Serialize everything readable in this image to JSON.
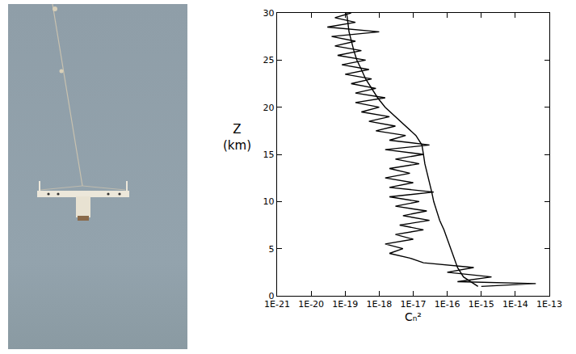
{
  "chart_data": {
    "type": "line",
    "xlabel": "Cₙ²",
    "ylabel": "Z\n(km)",
    "log": "x",
    "grid": false,
    "xlim": [
      1e-21,
      1e-13
    ],
    "xticks": [
      {
        "value": 1e-21,
        "label": "1E-21"
      },
      {
        "value": 1e-20,
        "label": "1E-20"
      },
      {
        "value": 1e-19,
        "label": "1E-19"
      },
      {
        "value": 1e-18,
        "label": "1E-18"
      },
      {
        "value": 1e-17,
        "label": "1E-17"
      },
      {
        "value": 1e-16,
        "label": "1E-16"
      },
      {
        "value": 1e-15,
        "label": "1E-15"
      },
      {
        "value": 1e-14,
        "label": "1E-14"
      },
      {
        "value": 1e-13,
        "label": "1E-13"
      }
    ],
    "ylim": [
      0,
      30
    ],
    "yticks": [
      0,
      5,
      10,
      15,
      20,
      25,
      30
    ],
    "series": [
      {
        "color": "#000000",
        "line_style": "solid",
        "y": [
          1.0,
          1.3,
          1.5,
          2.0,
          2.5,
          3.0,
          3.5,
          4.0,
          4.5,
          5.0,
          5.5,
          6.0,
          6.5,
          7.0,
          7.5,
          8.0,
          8.5,
          9.0,
          9.5,
          10.0,
          10.5,
          11.0,
          11.5,
          12.0,
          12.5,
          13.0,
          13.5,
          14.0,
          14.5,
          15.0,
          15.5,
          16.0,
          16.5,
          17.0,
          17.5,
          18.0,
          18.5,
          19.0,
          19.5,
          20.0,
          20.5,
          21.0,
          21.5,
          22.0,
          22.5,
          23.0,
          23.5,
          24.0,
          24.5,
          25.0,
          25.5,
          26.0,
          26.5,
          27.0,
          27.5,
          28.0,
          28.5,
          29.0,
          29.5,
          30.0
        ],
        "values": [
          1e-15,
          4e-14,
          2e-16,
          2e-15,
          1e-16,
          6e-16,
          2e-17,
          8e-18,
          2e-18,
          5e-18,
          1.5e-18,
          1e-17,
          3e-18,
          2e-17,
          4e-18,
          3e-17,
          5e-18,
          2.5e-17,
          3e-18,
          1.5e-17,
          2e-18,
          4e-17,
          2e-18,
          1e-17,
          1.5e-18,
          8e-18,
          2e-18,
          1.5e-17,
          3e-18,
          2e-17,
          1.5e-18,
          3e-17,
          2e-18,
          6e-18,
          8e-19,
          3e-18,
          5e-19,
          2e-18,
          3e-19,
          1e-18,
          2e-19,
          1.5e-18,
          2e-19,
          8e-19,
          1.5e-19,
          6e-19,
          1e-19,
          5e-19,
          8e-20,
          4e-19,
          6e-20,
          3e-19,
          5e-20,
          2e-19,
          4e-20,
          1e-18,
          3e-20,
          2e-19,
          5e-20,
          1.5e-19
        ]
      },
      {
        "color": "#000000",
        "line_style": "solid",
        "y": [
          1,
          2,
          3,
          4,
          5,
          6,
          7,
          8,
          9,
          10,
          11,
          12,
          13,
          14,
          15,
          16,
          17,
          18,
          19,
          20,
          21,
          22,
          23,
          24,
          25,
          26,
          27,
          28,
          29,
          30
        ],
        "values": [
          8e-16,
          3e-16,
          2e-16,
          1.6e-16,
          1.3e-16,
          1e-16,
          8e-17,
          6e-17,
          5e-17,
          4e-17,
          3.5e-17,
          3e-17,
          2.5e-17,
          2.2e-17,
          2e-17,
          1.8e-17,
          1.2e-17,
          6e-18,
          3e-18,
          1.5e-18,
          9e-19,
          6e-19,
          4e-19,
          3e-19,
          2.2e-19,
          1.8e-19,
          1.5e-19,
          1.3e-19,
          1.2e-19,
          1.1e-19
        ]
      }
    ]
  }
}
